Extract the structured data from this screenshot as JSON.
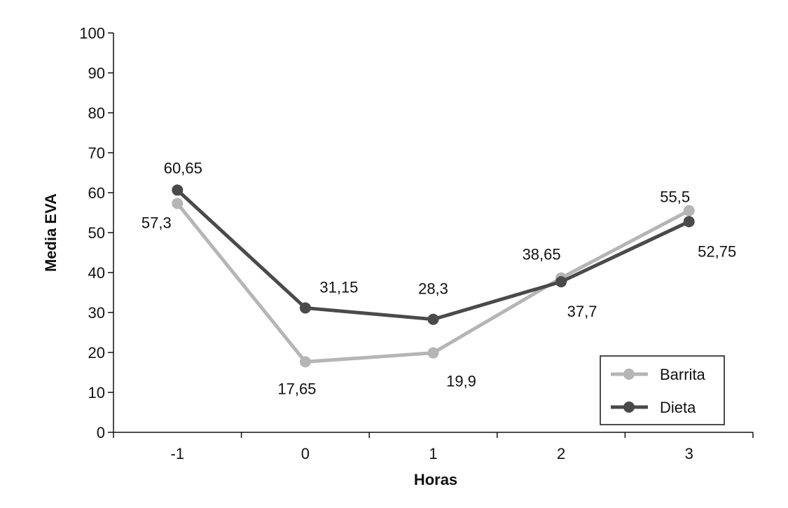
{
  "chart_data": {
    "type": "line",
    "title": "",
    "xlabel": "Horas",
    "ylabel": "Media EVA",
    "categories": [
      "-1",
      "0",
      "1",
      "2",
      "3"
    ],
    "yticks": [
      "0",
      "10",
      "20",
      "30",
      "40",
      "50",
      "60",
      "70",
      "80",
      "90",
      "100"
    ],
    "ylim": [
      0,
      100
    ],
    "grid": false,
    "legend_position": "bottom-right",
    "series": [
      {
        "name": "Barrita",
        "color": "#b5b5b5",
        "values": [
          57.3,
          17.65,
          19.9,
          38.65,
          55.5
        ],
        "value_labels": [
          "57,3",
          "17,65",
          "19,9",
          "38,65",
          "55,5"
        ]
      },
      {
        "name": "Dieta",
        "color": "#4a4a4a",
        "values": [
          60.65,
          31.15,
          28.3,
          37.7,
          52.75
        ],
        "value_labels": [
          "60,65",
          "31,15",
          "28,3",
          "37,7",
          "52,75"
        ]
      }
    ]
  }
}
